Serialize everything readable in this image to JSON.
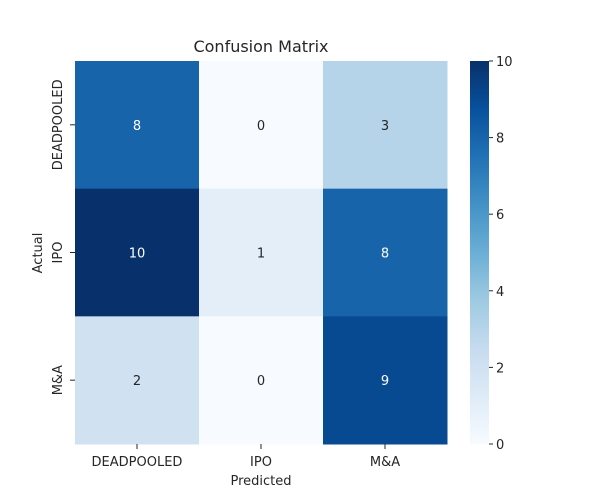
{
  "chart_data": {
    "type": "heatmap",
    "title": "Confusion Matrix",
    "xlabel": "Predicted",
    "ylabel": "Actual",
    "x_categories": [
      "DEADPOOLED",
      "IPO",
      "M&A"
    ],
    "y_categories": [
      "DEADPOOLED",
      "IPO",
      "M&A"
    ],
    "values": [
      [
        8,
        0,
        3
      ],
      [
        10,
        1,
        8
      ],
      [
        2,
        0,
        9
      ]
    ],
    "value_range": [
      0,
      10
    ],
    "colorbar_ticks": [
      0,
      2,
      4,
      6,
      8,
      10
    ],
    "colormap": "Blues",
    "colormap_stops": [
      "#f7fbff",
      "#deebf7",
      "#c6dbef",
      "#9ecae1",
      "#6baed6",
      "#4292c6",
      "#2171b5",
      "#08519c",
      "#08306b"
    ]
  }
}
